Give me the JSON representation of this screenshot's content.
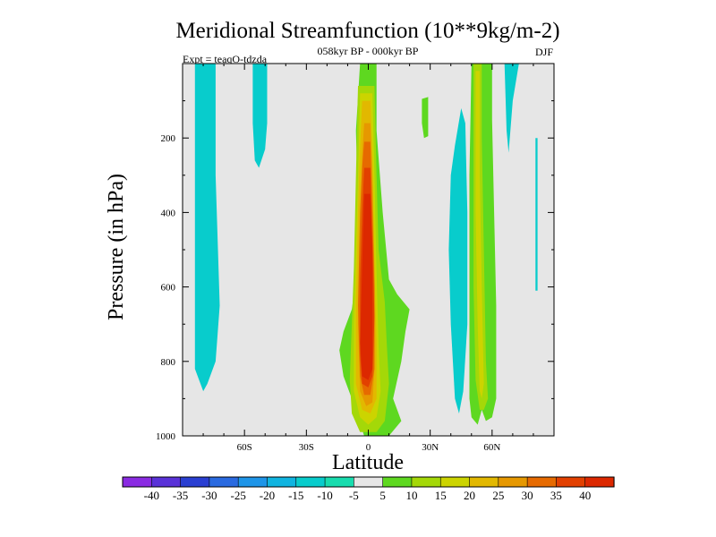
{
  "chart_data": {
    "type": "heatmap",
    "title": "Meridional Streamfunction (10**9kg/m-2)",
    "left_subtitle": "Expt = teaqO-tdzda",
    "center_subtitle": "058kyr BP - 000kyr BP",
    "right_subtitle": "DJF",
    "xlabel": "Latitude",
    "ylabel": "Pressure (in hPa)",
    "xlim": [
      -90,
      90
    ],
    "ylim": [
      0,
      1000
    ],
    "y_reversed": true,
    "x_ticks": [
      {
        "value": -60,
        "label": "60S"
      },
      {
        "value": -30,
        "label": "30S"
      },
      {
        "value": 0,
        "label": "0"
      },
      {
        "value": 30,
        "label": "30N"
      },
      {
        "value": 60,
        "label": "60N"
      }
    ],
    "y_ticks": [
      {
        "value": 200,
        "label": "200"
      },
      {
        "value": 400,
        "label": "400"
      },
      {
        "value": 600,
        "label": "600"
      },
      {
        "value": 800,
        "label": "800"
      },
      {
        "value": 1000,
        "label": "1000"
      }
    ],
    "background_color": "#e6e6e6",
    "colorbar": {
      "levels": [
        "-40",
        "-35",
        "-30",
        "-25",
        "-20",
        "-15",
        "-10",
        "-5",
        "5",
        "10",
        "15",
        "20",
        "25",
        "30",
        "35",
        "40"
      ],
      "colors": [
        "#8a2be2",
        "#5a32d8",
        "#2a3fd2",
        "#2a6ae0",
        "#1e95e8",
        "#10b4e0",
        "#08cccc",
        "#18dcae",
        "#e6e6e6",
        "#5ed820",
        "#a4d808",
        "#ccd400",
        "#e2b800",
        "#e69800",
        "#e66a00",
        "#e24000",
        "#dc2800"
      ]
    },
    "contour_regions": [
      {
        "level": -10,
        "name": "sh-polar-cell",
        "points": [
          [
            -84,
            0
          ],
          [
            -74,
            0
          ],
          [
            -74,
            300
          ],
          [
            -72,
            650
          ],
          [
            -74,
            800
          ],
          [
            -78,
            860
          ],
          [
            -80,
            880
          ],
          [
            -84,
            820
          ],
          [
            -84,
            400
          ]
        ]
      },
      {
        "level": -10,
        "name": "sh-midlat-strip",
        "points": [
          [
            -56,
            0
          ],
          [
            -49,
            0
          ],
          [
            -49,
            160
          ],
          [
            -50,
            230
          ],
          [
            -53,
            280
          ],
          [
            -55,
            260
          ],
          [
            -56,
            160
          ]
        ]
      },
      {
        "level": 5,
        "name": "equatorial-band",
        "points": [
          [
            -4,
            0
          ],
          [
            4,
            0
          ],
          [
            4,
            180
          ],
          [
            7,
            400
          ],
          [
            10,
            580
          ],
          [
            14,
            620
          ],
          [
            20,
            660
          ],
          [
            18,
            720
          ],
          [
            16,
            800
          ],
          [
            12,
            900
          ],
          [
            16,
            960
          ],
          [
            10,
            1000
          ],
          [
            -2,
            1000
          ],
          [
            -8,
            900
          ],
          [
            -12,
            840
          ],
          [
            -14,
            770
          ],
          [
            -12,
            720
          ],
          [
            -8,
            660
          ],
          [
            -6,
            580
          ],
          [
            -5,
            400
          ],
          [
            -6,
            180
          ]
        ]
      },
      {
        "level": 10,
        "name": "equator-10",
        "points": [
          [
            -5,
            60
          ],
          [
            3,
            60
          ],
          [
            4,
            300
          ],
          [
            5,
            500
          ],
          [
            8,
            640
          ],
          [
            9,
            760
          ],
          [
            10,
            860
          ],
          [
            8,
            960
          ],
          [
            4,
            990
          ],
          [
            -4,
            990
          ],
          [
            -8,
            940
          ],
          [
            -9,
            850
          ],
          [
            -8,
            700
          ],
          [
            -7,
            550
          ],
          [
            -6,
            300
          ]
        ]
      },
      {
        "level": 15,
        "name": "equator-15",
        "points": [
          [
            -4,
            80
          ],
          [
            2,
            80
          ],
          [
            3,
            300
          ],
          [
            4,
            560
          ],
          [
            5,
            760
          ],
          [
            6,
            880
          ],
          [
            4,
            950
          ],
          [
            0,
            970
          ],
          [
            -4,
            950
          ],
          [
            -7,
            880
          ],
          [
            -7,
            700
          ],
          [
            -6,
            500
          ],
          [
            -5,
            300
          ]
        ]
      },
      {
        "level": 20,
        "name": "equator-20",
        "points": [
          [
            -3,
            100
          ],
          [
            1,
            100
          ],
          [
            2,
            250
          ],
          [
            3,
            550
          ],
          [
            4,
            750
          ],
          [
            4,
            900
          ],
          [
            1,
            940
          ],
          [
            -3,
            930
          ],
          [
            -6,
            860
          ],
          [
            -6,
            650
          ],
          [
            -5,
            400
          ],
          [
            -4,
            230
          ]
        ]
      },
      {
        "level": 25,
        "name": "equator-25",
        "points": [
          [
            -2,
            160
          ],
          [
            1,
            160
          ],
          [
            2,
            300
          ],
          [
            3,
            560
          ],
          [
            3,
            820
          ],
          [
            2,
            910
          ],
          [
            -1,
            920
          ],
          [
            -4,
            880
          ],
          [
            -5,
            700
          ],
          [
            -4,
            450
          ],
          [
            -3,
            250
          ]
        ]
      },
      {
        "level": 30,
        "name": "equator-30",
        "points": [
          [
            -2,
            210
          ],
          [
            1,
            210
          ],
          [
            2,
            400
          ],
          [
            3,
            600
          ],
          [
            3,
            820
          ],
          [
            1,
            890
          ],
          [
            -2,
            890
          ],
          [
            -4,
            840
          ],
          [
            -5,
            650
          ],
          [
            -4,
            400
          ],
          [
            -3,
            280
          ]
        ]
      },
      {
        "level": 35,
        "name": "equator-35",
        "points": [
          [
            -2,
            280
          ],
          [
            1,
            280
          ],
          [
            2,
            480
          ],
          [
            3,
            680
          ],
          [
            2,
            840
          ],
          [
            0,
            870
          ],
          [
            -3,
            860
          ],
          [
            -4,
            780
          ],
          [
            -4,
            580
          ],
          [
            -3,
            400
          ]
        ]
      },
      {
        "level": 40,
        "name": "equator-40",
        "points": [
          [
            -2,
            350
          ],
          [
            1,
            350
          ],
          [
            2,
            500
          ],
          [
            2,
            700
          ],
          [
            2,
            820
          ],
          [
            0,
            850
          ],
          [
            -3,
            840
          ],
          [
            -4,
            750
          ],
          [
            -3,
            550
          ]
        ]
      },
      {
        "level": 5,
        "name": "nh-isolated-blob",
        "points": [
          [
            26,
            95
          ],
          [
            29,
            90
          ],
          [
            29,
            195
          ],
          [
            27,
            200
          ],
          [
            26,
            160
          ]
        ]
      },
      {
        "level": -10,
        "name": "nh-midlat-negative",
        "points": [
          [
            40,
            300
          ],
          [
            42,
            220
          ],
          [
            45,
            120
          ],
          [
            47,
            160
          ],
          [
            48,
            400
          ],
          [
            48,
            700
          ],
          [
            46,
            880
          ],
          [
            44,
            940
          ],
          [
            42,
            900
          ],
          [
            40,
            700
          ],
          [
            39,
            500
          ]
        ]
      },
      {
        "level": -10,
        "name": "nh-highlat-negative",
        "points": [
          [
            66,
            0
          ],
          [
            73,
            0
          ],
          [
            70,
            100
          ],
          [
            68,
            240
          ],
          [
            67,
            180
          ]
        ]
      },
      {
        "level": -10,
        "name": "nh-highlat-line",
        "points": [
          [
            81,
            200
          ],
          [
            82,
            200
          ],
          [
            82,
            610
          ],
          [
            81,
            610
          ]
        ]
      },
      {
        "level": 5,
        "name": "nh-jet-band",
        "points": [
          [
            50,
            0
          ],
          [
            60,
            0
          ],
          [
            60,
            150
          ],
          [
            61,
            400
          ],
          [
            62,
            650
          ],
          [
            62,
            900
          ],
          [
            60,
            950
          ],
          [
            57,
            960
          ],
          [
            55,
            930
          ],
          [
            53,
            970
          ],
          [
            50,
            950
          ],
          [
            49,
            900
          ],
          [
            49,
            600
          ],
          [
            49,
            300
          ]
        ]
      },
      {
        "level": 10,
        "name": "nh-jet-10",
        "points": [
          [
            51,
            0
          ],
          [
            55,
            0
          ],
          [
            55,
            200
          ],
          [
            56,
            500
          ],
          [
            57,
            800
          ],
          [
            58,
            900
          ],
          [
            56,
            930
          ],
          [
            54,
            930
          ],
          [
            52,
            850
          ],
          [
            51,
            600
          ],
          [
            51,
            300
          ]
        ]
      },
      {
        "level": 15,
        "name": "nh-jet-15",
        "points": [
          [
            52,
            20
          ],
          [
            54,
            20
          ],
          [
            54,
            300
          ],
          [
            55,
            600
          ],
          [
            56,
            860
          ],
          [
            55,
            900
          ],
          [
            54,
            880
          ],
          [
            53,
            700
          ],
          [
            52,
            400
          ]
        ]
      }
    ]
  }
}
